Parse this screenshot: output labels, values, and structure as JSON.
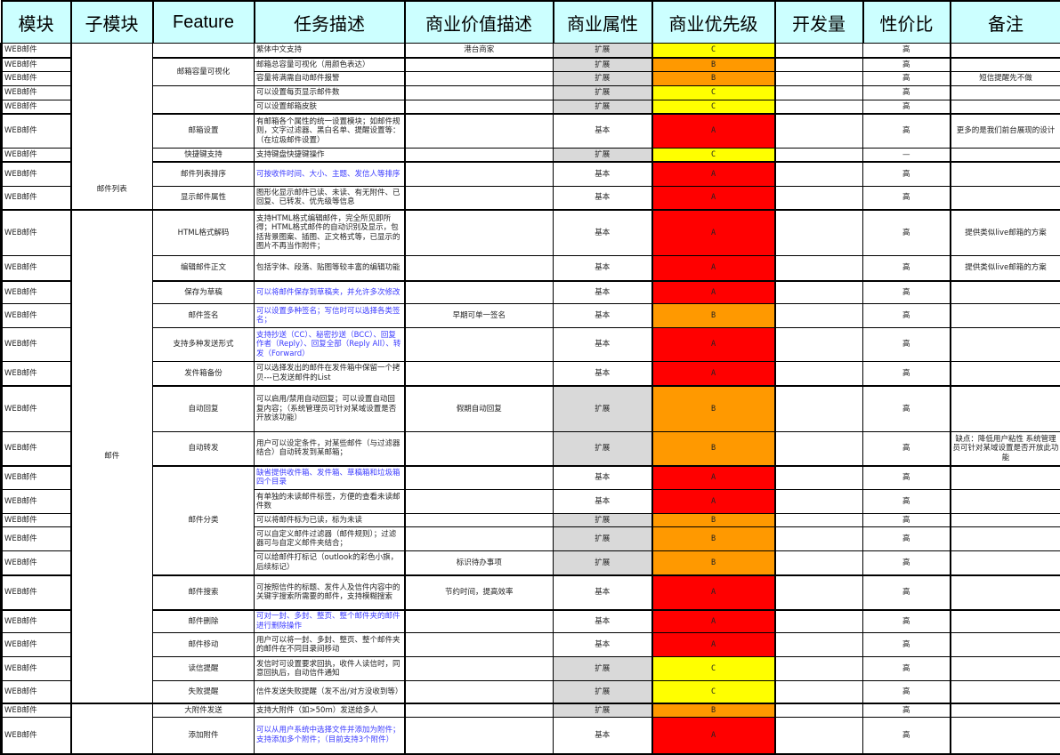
{
  "headers": [
    "模块",
    "子模块",
    "Feature",
    "任务描述",
    "商业价值描述",
    "商业属性",
    "商业优先级",
    "开发量",
    "性价比",
    "备注"
  ],
  "colors": {
    "header_bg": "#ccffff",
    "priority_A": "#ff0000",
    "priority_B": "#ff9900",
    "priority_C": "#ffff00",
    "attr_ext_bg": "#d9d9d9",
    "blue_text": "#3a3aff"
  },
  "submodules": [
    "邮件列表",
    "邮件",
    ""
  ],
  "features": [
    "",
    "邮箱容量可视化",
    "",
    "邮箱设置",
    "快捷键支持",
    "邮件列表排序",
    "显示邮件属性",
    "HTML格式解码",
    "编辑邮件正文",
    "保存为草稿",
    "邮件签名",
    "支持多种发送形式",
    "发件箱备份",
    "自动回复",
    "自动转发",
    "邮件分类",
    "邮件搜索",
    "邮件删除",
    "邮件移动",
    "读信提醒",
    "失败提醒",
    "大附件发送",
    "添加附件"
  ],
  "rows": [
    {
      "module": "WEB邮件",
      "task": "繁体中文支持",
      "value": "港台商家",
      "attr": "扩展",
      "priority": "C",
      "dev": "",
      "perf": "高",
      "note": ""
    },
    {
      "module": "WEB邮件",
      "task": "邮箱总容量可视化（用颜色表达）",
      "value": "",
      "attr": "扩展",
      "priority": "B",
      "dev": "",
      "perf": "高",
      "note": ""
    },
    {
      "module": "WEB邮件",
      "task": "容量将满需自动邮件报警",
      "value": "",
      "attr": "扩展",
      "priority": "B",
      "dev": "",
      "perf": "高",
      "note": "短信提醒先不做"
    },
    {
      "module": "WEB邮件",
      "task": "可以设置每页显示邮件数",
      "value": "",
      "attr": "扩展",
      "priority": "C",
      "dev": "",
      "perf": "高",
      "note": ""
    },
    {
      "module": "WEB邮件",
      "task": "可以设置邮箱皮肤",
      "value": "",
      "attr": "扩展",
      "priority": "C",
      "dev": "",
      "perf": "高",
      "note": ""
    },
    {
      "module": "WEB邮件",
      "task": "有邮箱各个属性的统一设置模块；如邮件规则，文字过滤器、黑白名单、提醒设置等：（在垃圾邮件设置）",
      "value": "",
      "attr": "基本",
      "priority": "A",
      "dev": "",
      "perf": "高",
      "note": "更多的是我们前台展现的设计"
    },
    {
      "module": "WEB邮件",
      "task": "支持键盘快捷键操作",
      "value": "",
      "attr": "扩展",
      "priority": "C",
      "dev": "",
      "perf": "—",
      "note": ""
    },
    {
      "module": "WEB邮件",
      "task": "可按收件时间、大小、主题、发信人等排序",
      "blue": true,
      "value": "",
      "attr": "基本",
      "priority": "A",
      "dev": "",
      "perf": "高",
      "note": ""
    },
    {
      "module": "WEB邮件",
      "task": "图形化显示邮件已读、未读、有无附件、已回复、已转发、优先级等信息",
      "value": "",
      "attr": "基本",
      "priority": "A",
      "dev": "",
      "perf": "高",
      "note": ""
    },
    {
      "module": "WEB邮件",
      "task": "支持HTML格式编辑邮件，完全所见即所得；HTML格式邮件的自动识别及显示，包括背景图案、插图、正文格式等，已显示的图片不再当作附件；",
      "value": "",
      "attr": "基本",
      "priority": "A",
      "dev": "",
      "perf": "高",
      "note": "提供类似live邮箱的方案"
    },
    {
      "module": "WEB邮件",
      "task": "包括字体、段落、贴图等较丰富的编辑功能",
      "value": "",
      "attr": "基本",
      "priority": "A",
      "dev": "",
      "perf": "高",
      "note": "提供类似live邮箱的方案"
    },
    {
      "module": "WEB邮件",
      "task": "可以将邮件保存到草稿夹，并允许多次修改",
      "blue": true,
      "value": "",
      "attr": "基本",
      "priority": "A",
      "dev": "",
      "perf": "高",
      "note": ""
    },
    {
      "module": "WEB邮件",
      "task": "可以设置多种签名；写信时可以选择各类签名；",
      "blue": true,
      "value": "早期可单一签名",
      "attr": "基本",
      "priority": "B",
      "dev": "",
      "perf": "高",
      "note": ""
    },
    {
      "module": "WEB邮件",
      "task": "支持抄送（CC）、秘密抄送（BCC）、回复作者（Reply）、回复全部（Reply All）、转发（Forward）",
      "blue": true,
      "value": "",
      "attr": "基本",
      "priority": "A",
      "dev": "",
      "perf": "高",
      "note": ""
    },
    {
      "module": "WEB邮件",
      "task": "可以选择发出的邮件在发件箱中保留一个拷贝---已发送邮件的List",
      "value": "",
      "attr": "基本",
      "priority": "A",
      "dev": "",
      "perf": "高",
      "note": ""
    },
    {
      "module": "WEB邮件",
      "task": "可以启用/禁用自动回复；可以设置自动回复内容；（系统管理员可针对某域设置是否开放该功能）",
      "value": "假期自动回复",
      "attr": "扩展",
      "priority": "B",
      "dev": "",
      "perf": "高",
      "note": ""
    },
    {
      "module": "WEB邮件",
      "task": "用户可以设定条件，对某些邮件（与过滤器结合）自动转发到某邮箱；",
      "value": "",
      "attr": "扩展",
      "priority": "B",
      "dev": "",
      "perf": "高",
      "note": "缺点：降低用户粘性 系统管理员可针对某域设置是否开放此功能"
    },
    {
      "module": "WEB邮件",
      "task": "缺省提供收件箱、发件箱、草稿箱和垃圾箱四个目录",
      "blue": true,
      "value": "",
      "attr": "基本",
      "priority": "A",
      "dev": "",
      "perf": "高",
      "note": ""
    },
    {
      "module": "WEB邮件",
      "task": "有单独的未读邮件标签，方便的查看未读邮件数",
      "value": "",
      "attr": "基本",
      "priority": "A",
      "dev": "",
      "perf": "高",
      "note": ""
    },
    {
      "module": "WEB邮件",
      "task": "可以将邮件标为已读，标为未读",
      "value": "",
      "attr": "扩展",
      "priority": "B",
      "dev": "",
      "perf": "高",
      "note": ""
    },
    {
      "module": "WEB邮件",
      "task": "可以自定义邮件过滤器（邮件规则）；过滤器可与自定义邮件夹结合；",
      "value": "",
      "attr": "扩展",
      "priority": "B",
      "dev": "",
      "perf": "高",
      "note": ""
    },
    {
      "module": "WEB邮件",
      "task": "可以给邮件打标记（outlook的彩色小旗，后续标记）",
      "value": "标识待办事项",
      "attr": "扩展",
      "priority": "B",
      "dev": "",
      "perf": "高",
      "note": ""
    },
    {
      "module": "WEB邮件",
      "task": "可按照信件的标题、发件人及信件内容中的关键字搜索所需要的邮件，支持模糊搜索",
      "value": "节约时间，提高效率",
      "attr": "基本",
      "priority": "A",
      "dev": "",
      "perf": "高",
      "note": ""
    },
    {
      "module": "WEB邮件",
      "task": "可对一封、多封、整页、整个邮件夹的邮件进行删除操作",
      "blue": true,
      "value": "",
      "attr": "基本",
      "priority": "A",
      "dev": "",
      "perf": "高",
      "note": ""
    },
    {
      "module": "WEB邮件",
      "task": "用户可以将一封、多封、整页、整个邮件夹的邮件在不同目录间移动",
      "value": "",
      "attr": "基本",
      "priority": "A",
      "dev": "",
      "perf": "高",
      "note": ""
    },
    {
      "module": "WEB邮件",
      "task": "发信时可设置要求回执，收件人读信时，同意回执后，自动信件通知",
      "value": "",
      "attr": "扩展",
      "priority": "C",
      "dev": "",
      "perf": "高",
      "note": ""
    },
    {
      "module": "WEB邮件",
      "task": "信件发送失败提醒（发不出/对方没收到等）",
      "value": "",
      "attr": "扩展",
      "priority": "C",
      "dev": "",
      "perf": "高",
      "note": ""
    },
    {
      "module": "WEB邮件",
      "task": "支持大附件（如>50m）发送给多人",
      "value": "",
      "attr": "扩展",
      "priority": "B",
      "dev": "",
      "perf": "高",
      "note": ""
    },
    {
      "module": "WEB邮件",
      "task": "可以从用户系统中选择文件并添加为附件；支持添加多个附件；（目前支持3个附件）",
      "blue": true,
      "value": "",
      "attr": "基本",
      "priority": "A",
      "dev": "",
      "perf": "高",
      "note": ""
    }
  ]
}
